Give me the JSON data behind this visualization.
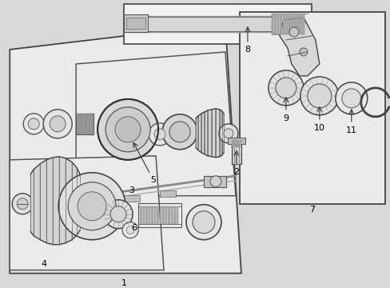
{
  "bg_color": "#d8d8d8",
  "fg_color": "#333333",
  "white": "#ffffff",
  "light_gray": "#e8e8e8",
  "mid_gray": "#c0c0c0",
  "dark_gray": "#888888",
  "box_fill": "#f0f0f0"
}
